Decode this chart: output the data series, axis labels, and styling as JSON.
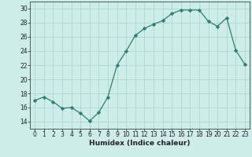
{
  "x": [
    0,
    1,
    2,
    3,
    4,
    5,
    6,
    7,
    8,
    9,
    10,
    11,
    12,
    13,
    14,
    15,
    16,
    17,
    18,
    19,
    20,
    21,
    22,
    23
  ],
  "y": [
    17,
    17.5,
    16.8,
    15.9,
    16.0,
    15.2,
    14.1,
    15.3,
    17.5,
    22.0,
    24.0,
    26.2,
    27.2,
    27.8,
    28.3,
    29.3,
    29.8,
    29.8,
    29.8,
    28.2,
    27.5,
    28.7,
    24.1,
    22.1
  ],
  "xlabel": "Humidex (Indice chaleur)",
  "ylim": [
    13,
    31
  ],
  "xlim": [
    -0.5,
    23.5
  ],
  "yticks": [
    14,
    16,
    18,
    20,
    22,
    24,
    26,
    28,
    30
  ],
  "xticks": [
    0,
    1,
    2,
    3,
    4,
    5,
    6,
    7,
    8,
    9,
    10,
    11,
    12,
    13,
    14,
    15,
    16,
    17,
    18,
    19,
    20,
    21,
    22,
    23
  ],
  "line_color": "#2e7d6e",
  "marker": "D",
  "marker_size": 2.2,
  "bg_color": "#ceecea",
  "grid_color": "#aed4d0",
  "font_color": "#222222",
  "tick_fontsize": 5.5,
  "xlabel_fontsize": 6.5
}
